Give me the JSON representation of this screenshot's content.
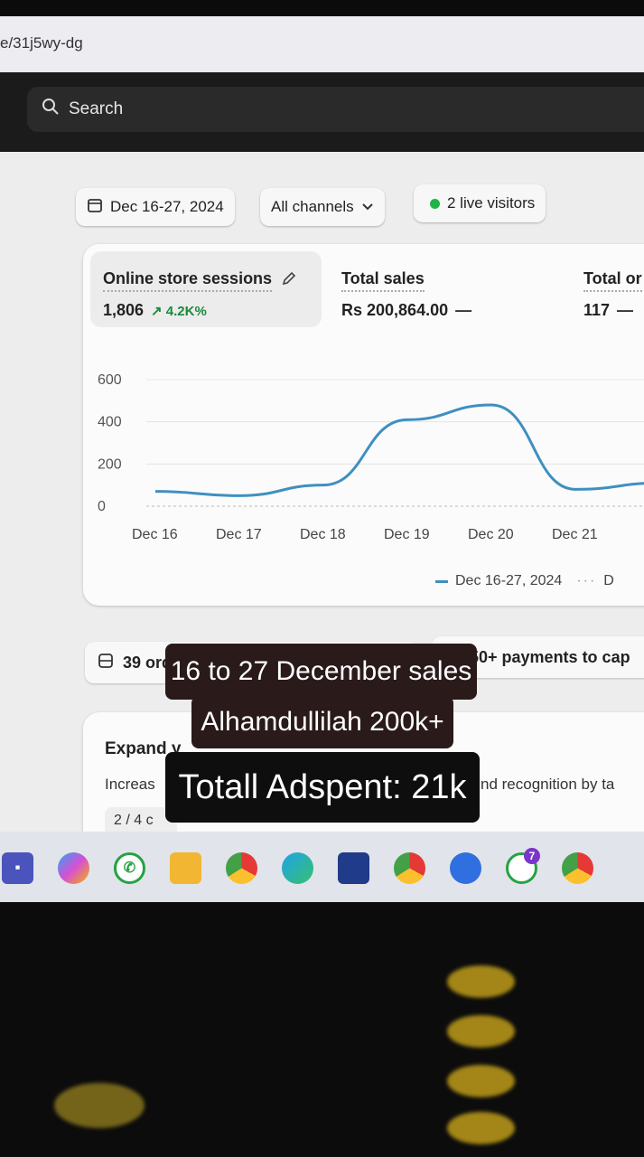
{
  "browser": {
    "url_fragment": "e/31j5wy-dg"
  },
  "search": {
    "placeholder": "Search"
  },
  "filters": {
    "date_range": "Dec 16-27, 2024",
    "channels": "All channels",
    "live_visitors": "2 live visitors"
  },
  "metrics": [
    {
      "label": "Online store sessions",
      "value": "1,806",
      "delta": "↗ 4.2K%"
    },
    {
      "label": "Total sales",
      "value": "Rs 200,864.00",
      "delta": "—"
    },
    {
      "label": "Total or",
      "value": "117",
      "delta": "—"
    }
  ],
  "legend": {
    "current": "Dec 16-27, 2024",
    "previous": "D"
  },
  "tasks": {
    "orders": "39 orders to fulfill",
    "payments": "50+ payments to cap"
  },
  "expand_card": {
    "title": "Expand y",
    "desc_left": "Increas",
    "desc_right": "nd recognition by ta",
    "progress": "2 / 4 c"
  },
  "captions": {
    "line1": "16 to 27 December sales",
    "line2": "Alhamdullilah 200k+",
    "line3": "Totall Adspent: 21k"
  },
  "taskbar": {
    "icons": [
      "teams-icon",
      "copilot-icon",
      "whatsapp-icon",
      "file-explorer-icon",
      "chrome-icon",
      "edge-icon",
      "store-icon",
      "chrome-profile-icon",
      "chrome-remote-icon",
      "whatsapp-badge-icon",
      "chrome-alt-icon",
      "chrome-extra-icon"
    ],
    "whatsapp_badge": "7"
  },
  "chart_data": {
    "type": "line",
    "x": [
      "Dec 16",
      "Dec 17",
      "Dec 18",
      "Dec 19",
      "Dec 20",
      "Dec 21"
    ],
    "series": [
      {
        "name": "Dec 16-27, 2024",
        "values": [
          70,
          50,
          100,
          410,
          480,
          80
        ],
        "color": "#3f8fc1"
      }
    ],
    "yticks": [
      0,
      200,
      400,
      600
    ],
    "ylim": [
      0,
      600
    ],
    "grid": true
  }
}
